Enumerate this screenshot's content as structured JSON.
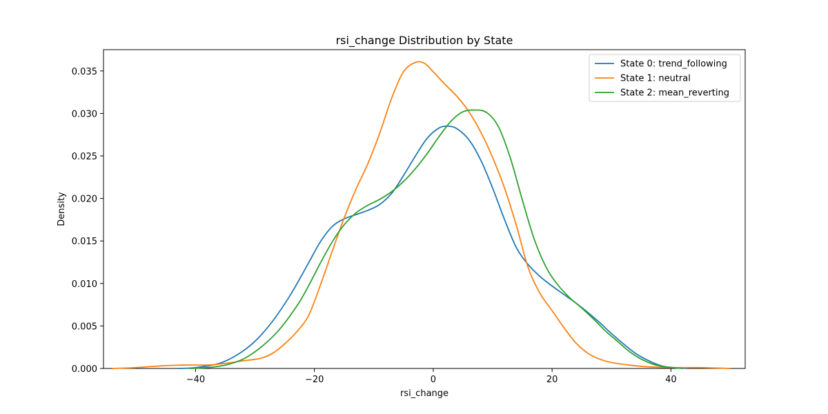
{
  "chart_data": {
    "type": "line",
    "title": "rsi_change Distribution by State",
    "xlabel": "rsi_change",
    "ylabel": "Density",
    "xlim": [
      -55.5,
      52.5
    ],
    "ylim": [
      0,
      0.0375
    ],
    "xticks": [
      -40,
      -20,
      0,
      20,
      40
    ],
    "xtick_labels": [
      "−40",
      "−20",
      "0",
      "20",
      "40"
    ],
    "yticks": [
      0,
      0.005,
      0.01,
      0.015,
      0.02,
      0.025,
      0.03,
      0.035
    ],
    "ytick_labels": [
      "0.000",
      "0.005",
      "0.010",
      "0.015",
      "0.020",
      "0.025",
      "0.030",
      "0.035"
    ],
    "grid": false,
    "legend_position": "top-right",
    "series": [
      {
        "name": "State 0: trend_following",
        "color": "#1f77b4",
        "points": [
          [
            -43,
            0
          ],
          [
            -40,
            0.0001
          ],
          [
            -36,
            0.0006
          ],
          [
            -33,
            0.0016
          ],
          [
            -30,
            0.0032
          ],
          [
            -27,
            0.0056
          ],
          [
            -24,
            0.0087
          ],
          [
            -21,
            0.0124
          ],
          [
            -19,
            0.0149
          ],
          [
            -17,
            0.0167
          ],
          [
            -15,
            0.0176
          ],
          [
            -13,
            0.0181
          ],
          [
            -11,
            0.0186
          ],
          [
            -9,
            0.0193
          ],
          [
            -7,
            0.0206
          ],
          [
            -5,
            0.0227
          ],
          [
            -3,
            0.025
          ],
          [
            -1,
            0.0271
          ],
          [
            1,
            0.0283
          ],
          [
            2.5,
            0.0285
          ],
          [
            4,
            0.0282
          ],
          [
            6,
            0.0269
          ],
          [
            8,
            0.0245
          ],
          [
            10,
            0.0212
          ],
          [
            12,
            0.0175
          ],
          [
            14,
            0.0142
          ],
          [
            16,
            0.0122
          ],
          [
            18,
            0.0108
          ],
          [
            20,
            0.0097
          ],
          [
            22,
            0.0087
          ],
          [
            24,
            0.0077
          ],
          [
            26,
            0.0066
          ],
          [
            28,
            0.0054
          ],
          [
            30,
            0.0041
          ],
          [
            32,
            0.0029
          ],
          [
            34,
            0.0018
          ],
          [
            36,
            0.001
          ],
          [
            38,
            0.0004
          ],
          [
            40,
            0.0001
          ],
          [
            43,
            0
          ]
        ]
      },
      {
        "name": "State 1: neutral",
        "color": "#ff7f0e",
        "points": [
          [
            -54,
            0
          ],
          [
            -50,
            0.0001
          ],
          [
            -46,
            0.0003
          ],
          [
            -42,
            0.0004
          ],
          [
            -38,
            0.0004
          ],
          [
            -35,
            0.0006
          ],
          [
            -32,
            0.0009
          ],
          [
            -29,
            0.0012
          ],
          [
            -27,
            0.0018
          ],
          [
            -25,
            0.0029
          ],
          [
            -23,
            0.0043
          ],
          [
            -21,
            0.0062
          ],
          [
            -19,
            0.0098
          ],
          [
            -17,
            0.0138
          ],
          [
            -15,
            0.0177
          ],
          [
            -13,
            0.0211
          ],
          [
            -11,
            0.0241
          ],
          [
            -9,
            0.0277
          ],
          [
            -7,
            0.0318
          ],
          [
            -5,
            0.0349
          ],
          [
            -3,
            0.036
          ],
          [
            -1.5,
            0.0359
          ],
          [
            0,
            0.0349
          ],
          [
            2,
            0.0334
          ],
          [
            4,
            0.032
          ],
          [
            6,
            0.0302
          ],
          [
            8,
            0.0278
          ],
          [
            10,
            0.0248
          ],
          [
            12,
            0.0212
          ],
          [
            14,
            0.0168
          ],
          [
            16,
            0.0118
          ],
          [
            18,
            0.0088
          ],
          [
            20,
            0.0068
          ],
          [
            22,
            0.0048
          ],
          [
            24,
            0.003
          ],
          [
            26,
            0.0018
          ],
          [
            28,
            0.0011
          ],
          [
            30,
            0.0007
          ],
          [
            33,
            0.0004
          ],
          [
            36,
            0.0002
          ],
          [
            40,
            0.0001
          ],
          [
            45,
            0.0001
          ],
          [
            50,
            0
          ]
        ]
      },
      {
        "name": "State 2: mean_reverting",
        "color": "#2ca02c",
        "points": [
          [
            -41,
            0
          ],
          [
            -38,
            0.0001
          ],
          [
            -35,
            0.0004
          ],
          [
            -32,
            0.0011
          ],
          [
            -29,
            0.0025
          ],
          [
            -26,
            0.0045
          ],
          [
            -23,
            0.0073
          ],
          [
            -21,
            0.0097
          ],
          [
            -19,
            0.0124
          ],
          [
            -17,
            0.0149
          ],
          [
            -15,
            0.0169
          ],
          [
            -13,
            0.0183
          ],
          [
            -11,
            0.0192
          ],
          [
            -9,
            0.0199
          ],
          [
            -7,
            0.0208
          ],
          [
            -5,
            0.022
          ],
          [
            -3,
            0.0235
          ],
          [
            -1,
            0.0253
          ],
          [
            1,
            0.0273
          ],
          [
            3,
            0.0291
          ],
          [
            5,
            0.0302
          ],
          [
            7,
            0.0304
          ],
          [
            9,
            0.0301
          ],
          [
            11,
            0.0284
          ],
          [
            13,
            0.0247
          ],
          [
            15,
            0.0198
          ],
          [
            17,
            0.0152
          ],
          [
            19,
            0.0119
          ],
          [
            21,
            0.0098
          ],
          [
            23,
            0.0083
          ],
          [
            25,
            0.0071
          ],
          [
            27,
            0.0058
          ],
          [
            29,
            0.0044
          ],
          [
            31,
            0.0032
          ],
          [
            33,
            0.002
          ],
          [
            35,
            0.0011
          ],
          [
            37,
            0.0005
          ],
          [
            39,
            0.0002
          ],
          [
            42,
            0
          ]
        ]
      }
    ]
  }
}
